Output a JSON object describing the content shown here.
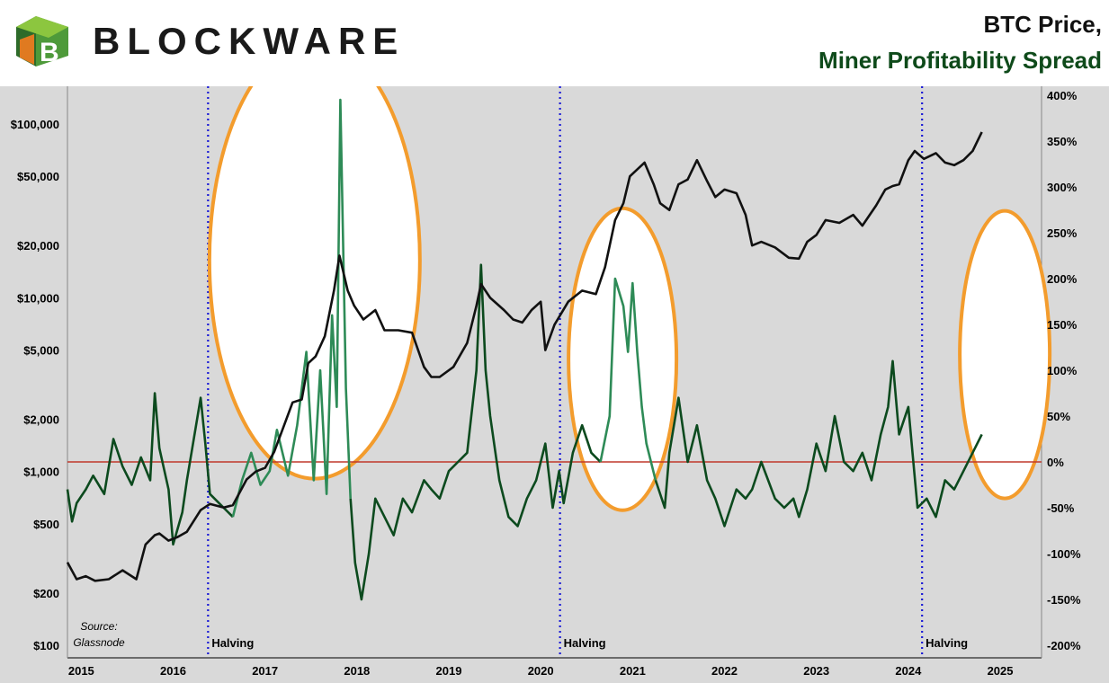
{
  "header": {
    "brand": "BLOCKWARE",
    "title_line1": "BTC Price,",
    "title_line2": "Miner Profitability Spread"
  },
  "colors": {
    "btc_price": "#111111",
    "spread": "#0c4a1e",
    "spread_highlight": "#2e8b57",
    "zero_line": "#c0392b",
    "halving_line": "#1a1ad6",
    "ellipse": "#f39c2d",
    "plot_bg": "#d9d9d9"
  },
  "source": [
    "Source:",
    "Glassnode"
  ],
  "halvings": [
    {
      "date": 2016.53,
      "label": "Halving"
    },
    {
      "date": 2020.36,
      "label": "Halving"
    },
    {
      "date": 2024.3,
      "label": "Halving"
    }
  ],
  "chart_data": {
    "type": "line",
    "title": "BTC Price, Miner Profitability Spread",
    "xlabel": "",
    "x_ticks": [
      "2015",
      "2016",
      "2017",
      "2018",
      "2019",
      "2020",
      "2021",
      "2022",
      "2023",
      "2024",
      "2025"
    ],
    "xlim": [
      2015.0,
      2025.6
    ],
    "left_axis": {
      "scale": "log",
      "ylim": [
        100,
        150000
      ],
      "ticks": [
        100,
        200,
        500,
        1000,
        2000,
        5000,
        10000,
        20000,
        50000,
        100000
      ],
      "tick_labels": [
        "$100",
        "$200",
        "$500",
        "$1,000",
        "$2,000",
        "$5,000",
        "$10,000",
        "$20,000",
        "$50,000",
        "$100,000"
      ]
    },
    "right_axis": {
      "scale": "linear",
      "ylim": [
        -200,
        400
      ],
      "ticks": [
        -200,
        -150,
        -100,
        -50,
        0,
        50,
        100,
        150,
        200,
        250,
        300,
        350,
        400
      ],
      "tick_labels": [
        "-200%",
        "-150%",
        "-100%",
        "-50%",
        "0%",
        "50%",
        "100%",
        "150%",
        "200%",
        "250%",
        "300%",
        "350%",
        "400%"
      ]
    },
    "series": [
      {
        "axis": "left",
        "points": [
          [
            2015.0,
            300
          ],
          [
            2015.1,
            240
          ],
          [
            2015.2,
            250
          ],
          [
            2015.3,
            235
          ],
          [
            2015.45,
            240
          ],
          [
            2015.6,
            270
          ],
          [
            2015.75,
            240
          ],
          [
            2015.85,
            380
          ],
          [
            2015.95,
            430
          ],
          [
            2016.0,
            440
          ],
          [
            2016.1,
            400
          ],
          [
            2016.2,
            420
          ],
          [
            2016.3,
            450
          ],
          [
            2016.45,
            600
          ],
          [
            2016.55,
            650
          ],
          [
            2016.7,
            620
          ],
          [
            2016.8,
            640
          ],
          [
            2016.95,
            900
          ],
          [
            2017.05,
            1000
          ],
          [
            2017.15,
            1050
          ],
          [
            2017.25,
            1300
          ],
          [
            2017.35,
            1800
          ],
          [
            2017.45,
            2500
          ],
          [
            2017.55,
            2600
          ],
          [
            2017.62,
            4200
          ],
          [
            2017.7,
            4600
          ],
          [
            2017.8,
            6000
          ],
          [
            2017.9,
            11000
          ],
          [
            2017.96,
            17500
          ],
          [
            2018.05,
            11000
          ],
          [
            2018.12,
            9000
          ],
          [
            2018.22,
            7500
          ],
          [
            2018.35,
            8500
          ],
          [
            2018.45,
            6500
          ],
          [
            2018.6,
            6500
          ],
          [
            2018.75,
            6300
          ],
          [
            2018.88,
            4000
          ],
          [
            2018.96,
            3500
          ],
          [
            2019.05,
            3500
          ],
          [
            2019.2,
            4000
          ],
          [
            2019.35,
            5500
          ],
          [
            2019.45,
            9000
          ],
          [
            2019.5,
            12000
          ],
          [
            2019.6,
            10000
          ],
          [
            2019.75,
            8500
          ],
          [
            2019.85,
            7500
          ],
          [
            2019.95,
            7200
          ],
          [
            2020.05,
            8500
          ],
          [
            2020.15,
            9500
          ],
          [
            2020.2,
            5000
          ],
          [
            2020.3,
            7000
          ],
          [
            2020.45,
            9500
          ],
          [
            2020.6,
            11000
          ],
          [
            2020.75,
            10500
          ],
          [
            2020.85,
            15000
          ],
          [
            2020.96,
            28000
          ],
          [
            2021.05,
            35000
          ],
          [
            2021.12,
            50000
          ],
          [
            2021.28,
            60000
          ],
          [
            2021.38,
            45000
          ],
          [
            2021.45,
            35000
          ],
          [
            2021.55,
            32000
          ],
          [
            2021.65,
            45000
          ],
          [
            2021.75,
            48000
          ],
          [
            2021.85,
            62000
          ],
          [
            2021.96,
            47000
          ],
          [
            2022.05,
            38000
          ],
          [
            2022.15,
            42000
          ],
          [
            2022.28,
            40000
          ],
          [
            2022.38,
            30000
          ],
          [
            2022.45,
            20000
          ],
          [
            2022.55,
            21000
          ],
          [
            2022.7,
            19500
          ],
          [
            2022.85,
            17000
          ],
          [
            2022.96,
            16800
          ],
          [
            2023.05,
            21000
          ],
          [
            2023.15,
            23000
          ],
          [
            2023.25,
            28000
          ],
          [
            2023.4,
            27000
          ],
          [
            2023.55,
            30000
          ],
          [
            2023.65,
            26000
          ],
          [
            2023.8,
            34000
          ],
          [
            2023.9,
            42000
          ],
          [
            2023.98,
            44000
          ],
          [
            2024.05,
            45000
          ],
          [
            2024.15,
            62000
          ],
          [
            2024.22,
            70000
          ],
          [
            2024.32,
            63000
          ],
          [
            2024.45,
            68000
          ],
          [
            2024.55,
            60000
          ],
          [
            2024.65,
            58000
          ],
          [
            2024.75,
            62000
          ],
          [
            2024.85,
            70000
          ],
          [
            2024.95,
            90000
          ]
        ]
      },
      {
        "axis": "right",
        "points": [
          [
            2015.0,
            -30
          ],
          [
            2015.05,
            -65
          ],
          [
            2015.1,
            -45
          ],
          [
            2015.2,
            -30
          ],
          [
            2015.28,
            -15
          ],
          [
            2015.4,
            -35
          ],
          [
            2015.5,
            25
          ],
          [
            2015.6,
            -5
          ],
          [
            2015.7,
            -25
          ],
          [
            2015.8,
            5
          ],
          [
            2015.9,
            -20
          ],
          [
            2015.95,
            75
          ],
          [
            2016.0,
            15
          ],
          [
            2016.1,
            -30
          ],
          [
            2016.15,
            -90
          ],
          [
            2016.25,
            -55
          ],
          [
            2016.3,
            -20
          ],
          [
            2016.35,
            10
          ],
          [
            2016.45,
            70
          ],
          [
            2016.5,
            20
          ],
          [
            2016.55,
            -35
          ],
          [
            2016.7,
            -50
          ],
          [
            2016.8,
            -60
          ],
          [
            2016.9,
            -20
          ],
          [
            2017.0,
            10
          ],
          [
            2017.1,
            -25
          ],
          [
            2017.2,
            -10
          ],
          [
            2017.28,
            35
          ],
          [
            2017.4,
            -15
          ],
          [
            2017.5,
            40
          ],
          [
            2017.6,
            120
          ],
          [
            2017.68,
            -20
          ],
          [
            2017.75,
            100
          ],
          [
            2017.82,
            -35
          ],
          [
            2017.88,
            160
          ],
          [
            2017.93,
            60
          ],
          [
            2017.97,
            395
          ],
          [
            2018.03,
            80
          ],
          [
            2018.08,
            -40
          ],
          [
            2018.13,
            -110
          ],
          [
            2018.2,
            -150
          ],
          [
            2018.28,
            -100
          ],
          [
            2018.35,
            -40
          ],
          [
            2018.45,
            -60
          ],
          [
            2018.55,
            -80
          ],
          [
            2018.65,
            -40
          ],
          [
            2018.75,
            -55
          ],
          [
            2018.88,
            -20
          ],
          [
            2018.96,
            -30
          ],
          [
            2019.05,
            -40
          ],
          [
            2019.15,
            -10
          ],
          [
            2019.25,
            0
          ],
          [
            2019.35,
            10
          ],
          [
            2019.45,
            100
          ],
          [
            2019.5,
            215
          ],
          [
            2019.55,
            100
          ],
          [
            2019.6,
            50
          ],
          [
            2019.7,
            -20
          ],
          [
            2019.8,
            -60
          ],
          [
            2019.9,
            -70
          ],
          [
            2020.0,
            -40
          ],
          [
            2020.1,
            -20
          ],
          [
            2020.2,
            20
          ],
          [
            2020.28,
            -50
          ],
          [
            2020.35,
            -10
          ],
          [
            2020.4,
            -45
          ],
          [
            2020.5,
            10
          ],
          [
            2020.6,
            40
          ],
          [
            2020.7,
            10
          ],
          [
            2020.8,
            0
          ],
          [
            2020.9,
            50
          ],
          [
            2020.96,
            200
          ],
          [
            2021.05,
            170
          ],
          [
            2021.1,
            120
          ],
          [
            2021.15,
            195
          ],
          [
            2021.2,
            120
          ],
          [
            2021.25,
            60
          ],
          [
            2021.3,
            20
          ],
          [
            2021.4,
            -20
          ],
          [
            2021.5,
            -50
          ],
          [
            2021.55,
            10
          ],
          [
            2021.65,
            70
          ],
          [
            2021.75,
            0
          ],
          [
            2021.85,
            40
          ],
          [
            2021.96,
            -20
          ],
          [
            2022.05,
            -40
          ],
          [
            2022.15,
            -70
          ],
          [
            2022.28,
            -30
          ],
          [
            2022.38,
            -40
          ],
          [
            2022.45,
            -30
          ],
          [
            2022.55,
            0
          ],
          [
            2022.7,
            -40
          ],
          [
            2022.8,
            -50
          ],
          [
            2022.9,
            -40
          ],
          [
            2022.96,
            -60
          ],
          [
            2023.05,
            -30
          ],
          [
            2023.15,
            20
          ],
          [
            2023.25,
            -10
          ],
          [
            2023.35,
            50
          ],
          [
            2023.45,
            0
          ],
          [
            2023.55,
            -10
          ],
          [
            2023.65,
            10
          ],
          [
            2023.75,
            -20
          ],
          [
            2023.85,
            30
          ],
          [
            2023.93,
            60
          ],
          [
            2023.98,
            110
          ],
          [
            2024.05,
            30
          ],
          [
            2024.15,
            60
          ],
          [
            2024.25,
            -50
          ],
          [
            2024.35,
            -40
          ],
          [
            2024.45,
            -60
          ],
          [
            2024.55,
            -20
          ],
          [
            2024.65,
            -30
          ],
          [
            2024.75,
            -10
          ],
          [
            2024.85,
            10
          ],
          [
            2024.95,
            30
          ]
        ]
      }
    ],
    "zero_line": 0,
    "grid": false,
    "legend": "none",
    "annotations": [
      "Halving",
      "Halving",
      "Halving",
      "Source: Glassnode"
    ]
  }
}
